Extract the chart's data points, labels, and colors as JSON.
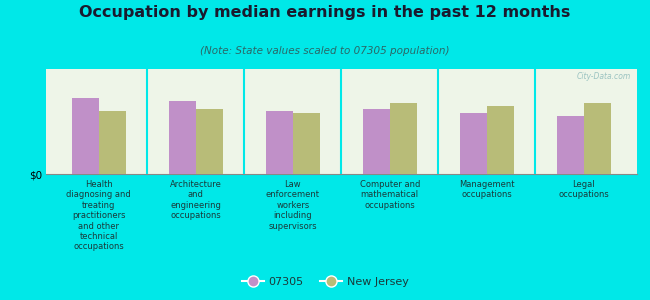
{
  "title": "Occupation by median earnings in the past 12 months",
  "subtitle": "(Note: State values scaled to 07305 population)",
  "background_color": "#00e8e8",
  "plot_bg_color": "#eef5e8",
  "categories": [
    "Health\ndiagnosing and\ntreating\npractitioners\nand other\ntechnical\noccupations",
    "Architecture\nand\nengineering\noccupations",
    "Law\nenforcement\nworkers\nincluding\nsupervisors",
    "Computer and\nmathematical\noccupations",
    "Management\noccupations",
    "Legal\noccupations"
  ],
  "values_07305": [
    0.72,
    0.7,
    0.6,
    0.62,
    0.58,
    0.55
  ],
  "values_nj": [
    0.6,
    0.62,
    0.58,
    0.68,
    0.65,
    0.68
  ],
  "color_07305": "#c090c8",
  "color_nj": "#b8bc78",
  "ylabel": "$0",
  "legend_07305": "07305",
  "legend_nj": "New Jersey",
  "watermark": "City-Data.com",
  "bar_width": 0.28,
  "ylim": [
    0,
    1.0
  ],
  "separator_color": "#00e8e8",
  "title_color": "#1a1a2e",
  "subtitle_color": "#2a6868",
  "label_color": "#1a3a3a"
}
